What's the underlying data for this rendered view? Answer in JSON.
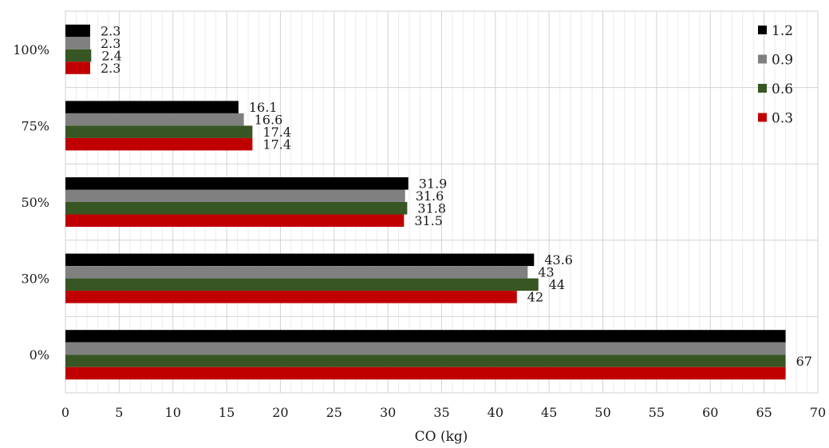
{
  "chart_data": {
    "type": "bar",
    "orientation": "horizontal",
    "categories": [
      "100%",
      "75%",
      "50%",
      "30%",
      "0%"
    ],
    "series": [
      {
        "name": "1.2",
        "color": "#000000",
        "values": [
          2.3,
          16.1,
          31.9,
          43.6,
          67
        ]
      },
      {
        "name": "0.9",
        "color": "#808080",
        "values": [
          2.3,
          16.6,
          31.6,
          43,
          67
        ]
      },
      {
        "name": "0.6",
        "color": "#375623",
        "values": [
          2.4,
          17.4,
          31.8,
          44,
          67
        ]
      },
      {
        "name": "0.3",
        "color": "#C00000",
        "values": [
          2.3,
          17.4,
          31.5,
          42,
          67
        ]
      }
    ],
    "data_labels": [
      [
        "2.3",
        "16.1",
        "31.9",
        "43.6",
        ""
      ],
      [
        "2.3",
        "16.6",
        "31.6",
        "43",
        ""
      ],
      [
        "2.4",
        "17.4",
        "31.8",
        "44",
        ""
      ],
      [
        "2.3",
        "17.4",
        "31.5",
        "42",
        ""
      ]
    ],
    "category_group_label": {
      "category": "0%",
      "text": "67"
    },
    "xlabel": "CO (kg)",
    "ylabel": "",
    "xlim": [
      0,
      70
    ],
    "x_ticks": [
      0,
      5,
      10,
      15,
      20,
      25,
      30,
      35,
      40,
      45,
      50,
      55,
      60,
      65,
      70
    ],
    "x_minor_step": 1,
    "grid": true,
    "legend_position": "top-right"
  }
}
